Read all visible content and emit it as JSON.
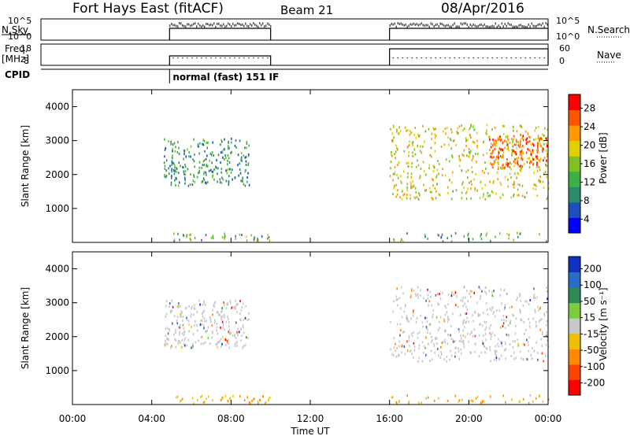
{
  "header": {
    "station": "Fort Hays East (fitACF)",
    "beam": "Beam 21",
    "date": "08/Apr/2016"
  },
  "nsky_panel": {
    "left_label": "N.Sky",
    "left_ticks": [
      "10^5",
      "10^0"
    ],
    "right_ticks": [
      "10^5",
      "10^0"
    ],
    "right_label": "N.Search"
  },
  "freq_panel": {
    "left_label_line1": "Freq.",
    "left_label_line2": "[MHz]",
    "left_ticks": [
      "18",
      "8"
    ],
    "right_ticks": [
      "60",
      "0"
    ],
    "right_label": "Nave"
  },
  "cpid": {
    "label": "CPID",
    "program": "normal (fast) 151 IF"
  },
  "colors": {
    "power_scale": [
      "#0000ff",
      "#1f4fbf",
      "#2a8a6a",
      "#3cb043",
      "#80c020",
      "#e0d000",
      "#ff9900",
      "#ff5500",
      "#ff0000"
    ],
    "velocity_scale": [
      "#1030c0",
      "#2a6cc8",
      "#2e8b57",
      "#7ccd3c",
      "#c8c8c8",
      "#c8c8c8",
      "#f0c000",
      "#ff8800",
      "#ff4400",
      "#ff0000"
    ],
    "echo_gray": "#c8c8c8"
  },
  "chart_data": [
    {
      "type": "heatmap",
      "name": "power",
      "ylabel": "Slant Range [km]",
      "ylim": [
        0,
        4500
      ],
      "yticks": [
        1000,
        2000,
        3000,
        4000
      ],
      "xlim": [
        0,
        24
      ],
      "colorbar": {
        "label": "Power [dB]",
        "ticks": [
          "28",
          "24",
          "20",
          "16",
          "12",
          "8",
          "4"
        ],
        "range": [
          0,
          30
        ]
      },
      "echo_regions": [
        {
          "t0": 4.6,
          "t1": 8.9,
          "r0": 1700,
          "r1": 3100,
          "power": 10
        },
        {
          "t0": 16.0,
          "t1": 24.0,
          "r0": 1300,
          "r1": 3500,
          "power": 18
        },
        {
          "t0": 21.0,
          "t1": 24.0,
          "r0": 2200,
          "r1": 3200,
          "power": 24
        }
      ]
    },
    {
      "type": "heatmap",
      "name": "velocity",
      "ylabel": "Slant Range [km]",
      "ylim": [
        0,
        4500
      ],
      "yticks": [
        1000,
        2000,
        3000,
        4000
      ],
      "xlim": [
        0,
        24
      ],
      "colorbar": {
        "label": "Velocity [m s⁻¹]",
        "ticks": [
          "200",
          "100",
          "50",
          "15",
          "-15",
          "-50",
          "-100",
          "-200"
        ],
        "range": [
          -250,
          250
        ]
      },
      "echo_regions": [
        {
          "t0": 4.6,
          "t1": 8.9,
          "r0": 1700,
          "r1": 3100,
          "velocity": 0
        },
        {
          "t0": 16.0,
          "t1": 24.0,
          "r0": 1300,
          "r1": 3500,
          "velocity": 0
        }
      ]
    }
  ],
  "operation_windows": [
    {
      "start": 4.9,
      "end": 10.0
    },
    {
      "start": 16.0,
      "end": 24.0
    }
  ],
  "xaxis": {
    "label": "Time UT",
    "ticks": [
      "00:00",
      "04:00",
      "08:00",
      "12:00",
      "16:00",
      "20:00",
      "00:00"
    ]
  }
}
